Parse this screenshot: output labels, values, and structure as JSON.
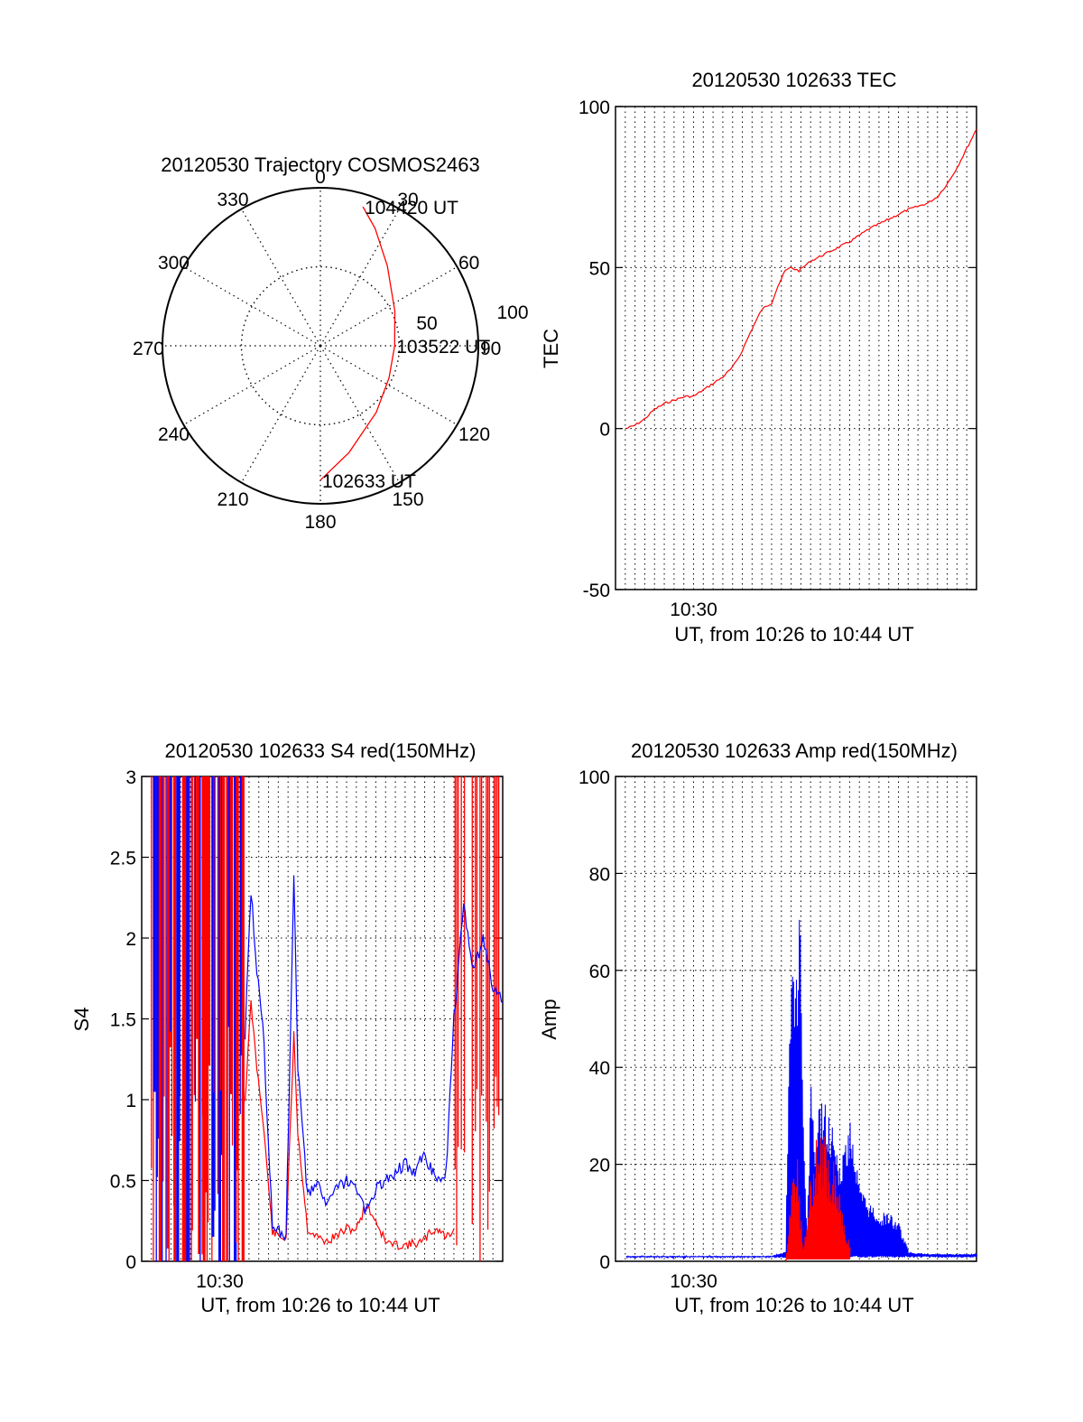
{
  "colors": {
    "red": "#ff0000",
    "blue": "#0000ff",
    "axis": "#000000",
    "grid": "#000000",
    "background": "#ffffff"
  },
  "chart_data": [
    {
      "type": "polar",
      "title": "20120530 Trajectory COSMOS2463",
      "azimuth_labels": [
        "0",
        "30",
        "60",
        "90",
        "120",
        "150",
        "180",
        "210",
        "240",
        "270",
        "300",
        "330"
      ],
      "radial_labels": [
        "50",
        "100"
      ],
      "grid": true,
      "zenith_angle_max": 100,
      "series": [
        {
          "color": "#ff0000",
          "points": [
            {
              "az": 180,
              "za": 85
            },
            {
              "az": 165,
              "za": 70
            },
            {
              "az": 140,
              "za": 55
            },
            {
              "az": 115,
              "za": 48
            },
            {
              "az": 90,
              "za": 47
            },
            {
              "az": 65,
              "za": 52
            },
            {
              "az": 40,
              "za": 66
            },
            {
              "az": 25,
              "za": 82
            },
            {
              "az": 17,
              "za": 92
            }
          ]
        }
      ],
      "annotations": [
        {
          "text": "104420 UT",
          "az": 17,
          "za": 92
        },
        {
          "text": "103522 UT",
          "az": 90,
          "za": 47
        },
        {
          "text": "102633 UT",
          "az": 180,
          "za": 85
        }
      ]
    },
    {
      "type": "line",
      "title": "20120530 102633 TEC",
      "xlabel": "UT, from 10:26 to 10:44 UT",
      "ylabel": "TEC",
      "x_units": "minutes",
      "xlim": [
        26.0,
        44.5
      ],
      "ylim": [
        -50,
        100
      ],
      "yticks": [
        -50,
        0,
        50,
        100
      ],
      "xtick_labels": [
        {
          "at": 30,
          "label": "10:30"
        }
      ],
      "grid": true,
      "series": [
        {
          "color": "#ff0000",
          "x": [
            26.55,
            27.0,
            27.5,
            28.0,
            28.6,
            29.1,
            29.6,
            30.0,
            30.5,
            31.0,
            31.5,
            32.0,
            32.4,
            33.0,
            33.5,
            34.0,
            34.3,
            34.7,
            35.0,
            35.4,
            36.0,
            37.0,
            38.0,
            39.0,
            40.0,
            41.0,
            42.0,
            42.5,
            43.0,
            43.5,
            44.0,
            44.5
          ],
          "y": [
            0,
            1,
            3,
            6,
            8,
            9,
            10,
            10,
            12,
            14,
            16,
            19,
            23,
            31,
            37,
            39,
            44,
            49,
            50,
            49,
            52,
            55,
            58,
            62,
            65,
            68,
            70,
            72,
            76,
            81,
            87,
            93
          ]
        }
      ]
    },
    {
      "type": "line",
      "title": "20120530 102633 S4 red(150MHz)",
      "xlabel": "UT, from 10:26 to 10:44 UT",
      "ylabel": "S4",
      "x_units": "minutes",
      "xlim": [
        26.0,
        44.5
      ],
      "ylim": [
        0,
        3
      ],
      "yticks": [
        "0",
        "0.5",
        "1",
        "1.5",
        "2",
        "2.5",
        "3"
      ],
      "xtick_labels": [
        {
          "at": 30,
          "label": "10:30"
        }
      ],
      "grid": true,
      "series": [
        {
          "color": "#ff0000",
          "x": [
            31.3,
            31.6,
            31.9,
            32.2,
            32.7,
            33.1,
            33.4,
            33.8,
            34.0,
            34.5,
            35.0,
            35.5,
            36.0,
            36.5,
            37.0,
            37.5,
            38.0,
            38.5,
            39.0,
            39.5,
            40.0,
            40.4,
            40.8,
            41.2,
            41.6,
            42.0
          ],
          "y": [
            1.0,
            1.6,
            1.2,
            0.9,
            0.18,
            0.15,
            0.14,
            1.4,
            0.8,
            0.2,
            0.15,
            0.12,
            0.16,
            0.2,
            0.2,
            0.35,
            0.25,
            0.12,
            0.1,
            0.1,
            0.11,
            0.12,
            0.18,
            0.2,
            0.15,
            0.2
          ]
        },
        {
          "color": "#0000ff",
          "x": [
            31.3,
            31.6,
            31.9,
            32.2,
            32.7,
            33.1,
            33.4,
            33.8,
            34.0,
            34.5,
            35.0,
            35.5,
            36.0,
            36.5,
            37.0,
            37.5,
            38.0,
            38.5,
            39.0,
            39.5,
            40.0,
            40.4,
            40.8,
            41.2,
            41.6,
            42.0,
            42.5,
            43.0,
            43.5,
            44.0,
            44.5
          ],
          "y": [
            1.4,
            2.3,
            1.8,
            1.5,
            0.22,
            0.18,
            0.16,
            2.4,
            1.2,
            0.4,
            0.5,
            0.35,
            0.45,
            0.5,
            0.45,
            0.3,
            0.45,
            0.5,
            0.55,
            0.6,
            0.55,
            0.65,
            0.58,
            0.5,
            0.55,
            1.5,
            2.2,
            1.8,
            2.0,
            1.7,
            1.6
          ]
        }
      ],
      "spikes_note": "dense red/blue vertical spikes 0-3 between 10:26:30 and 10:31:20, and after 10:41:50"
    },
    {
      "type": "line",
      "title": "20120530 102633 Amp red(150MHz)",
      "xlabel": "UT, from 10:26 to 10:44 UT",
      "ylabel": "Amp",
      "x_units": "minutes",
      "xlim": [
        26.0,
        44.5
      ],
      "ylim": [
        0,
        100
      ],
      "yticks": [
        0,
        20,
        40,
        60,
        80,
        100
      ],
      "xtick_labels": [
        {
          "at": 30,
          "label": "10:30"
        }
      ],
      "grid": true,
      "series": [
        {
          "color": "#ff0000",
          "x": [
            34.7,
            35.0,
            35.3,
            35.6,
            36.0,
            36.4,
            36.8,
            37.2,
            37.6,
            38.0
          ],
          "y": [
            0,
            17,
            22,
            3,
            20,
            28,
            25,
            22,
            12,
            3
          ]
        },
        {
          "color": "#0000ff",
          "x": [
            26.55,
            28.0,
            30.0,
            32.0,
            34.0,
            34.7,
            34.9,
            35.1,
            35.3,
            35.4,
            35.6,
            35.8,
            36.0,
            36.2,
            36.5,
            37.0,
            37.5,
            38.0,
            38.5,
            39.0,
            39.5,
            40.0,
            40.5,
            41.0,
            42.0,
            43.0,
            44.0,
            44.5
          ],
          "y": [
            1,
            1,
            1,
            1,
            1,
            2,
            55,
            65,
            60,
            80,
            30,
            5,
            40,
            25,
            35,
            30,
            20,
            30,
            15,
            12,
            10,
            10,
            8,
            2,
            1.5,
            1.5,
            1.5,
            1.5
          ]
        }
      ]
    }
  ]
}
